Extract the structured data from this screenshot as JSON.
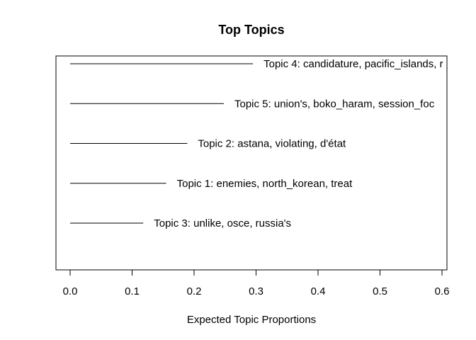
{
  "chart_data": {
    "type": "bar",
    "orientation": "horizontal",
    "title": "Top Topics",
    "xlabel": "Expected Topic Proportions",
    "ylabel": "",
    "xlim": [
      0,
      0.6
    ],
    "xticks": [
      "0.0",
      "0.1",
      "0.2",
      "0.3",
      "0.4",
      "0.5",
      "0.6"
    ],
    "categories": [
      "Topic 4: candidature, pacific_islands, r",
      "Topic 5: union's, boko_haram, session_foc",
      "Topic 2: astana, violating, d'état",
      "Topic 1: enemies, north_korean, treat",
      "Topic 3: unlike, osce, russia's"
    ],
    "values": [
      0.295,
      0.248,
      0.189,
      0.155,
      0.118
    ],
    "grid": false,
    "legend": "none"
  }
}
